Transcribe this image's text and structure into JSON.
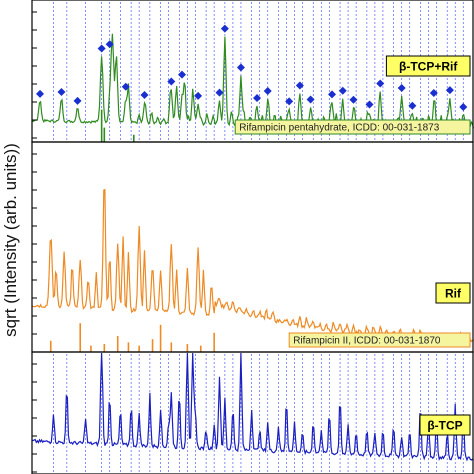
{
  "chart_data": [
    {
      "type": "line",
      "panel": "top",
      "series_label": "β-TCP+Rif",
      "reference_label": "Rifampicin pentahydrate, ICDD: 00-031-1873",
      "line_color": "#2e8b1f",
      "marker_color": "#1a2fd0",
      "label_box_fill": "#ffff66",
      "reference_box_fill": "#f5f5a0",
      "reference_box_edge": "#2e8b1f",
      "marker_positions": [
        3,
        11,
        17,
        26,
        29,
        35,
        42,
        52,
        56,
        62,
        70,
        72,
        78,
        84,
        88,
        96,
        100,
        104,
        112,
        116,
        120,
        126,
        130,
        138,
        142,
        150,
        156,
        161
      ],
      "reference_sticks": [
        {
          "x": 26,
          "h": 0.9
        },
        {
          "x": 27,
          "h": 0.4
        },
        {
          "x": 38,
          "h": 0.2
        }
      ]
    },
    {
      "type": "line",
      "panel": "middle",
      "series_label": "Rif",
      "reference_label": "Rifampicin II, ICDD: 00-031-1870",
      "line_color": "#ee8a24",
      "label_box_fill": "#ffff66",
      "reference_box_fill": "#f5f5a0",
      "reference_box_edge": "#ee8a24",
      "reference_sticks": [
        {
          "x": 7,
          "h": 0.35
        },
        {
          "x": 18,
          "h": 0.9
        },
        {
          "x": 22,
          "h": 0.2
        },
        {
          "x": 27,
          "h": 0.25
        },
        {
          "x": 32,
          "h": 0.5
        },
        {
          "x": 36,
          "h": 0.3
        },
        {
          "x": 40,
          "h": 0.2
        },
        {
          "x": 45,
          "h": 0.4
        },
        {
          "x": 48,
          "h": 0.85
        },
        {
          "x": 52,
          "h": 0.3
        },
        {
          "x": 58,
          "h": 0.25
        },
        {
          "x": 63,
          "h": 0.2
        },
        {
          "x": 68,
          "h": 0.6
        }
      ]
    },
    {
      "type": "line",
      "panel": "bottom",
      "series_label": "β-TCP",
      "line_color": "#1a1fc0",
      "label_box_fill": "#ffff66"
    }
  ],
  "y_axis_label": "sqrt (Intensity (arb. units))",
  "grid": "vertical dotted lines at β-TCP reflections",
  "dotted_line_color": "#5060ff",
  "reflection_positions": [
    8,
    13,
    20,
    26,
    29,
    33,
    37,
    40,
    44,
    48,
    51,
    55,
    58,
    61,
    65,
    68,
    72,
    75,
    78,
    82,
    85,
    88,
    92,
    95,
    98,
    101,
    105,
    108,
    111,
    115,
    118,
    121,
    125,
    128,
    131,
    135,
    138,
    141,
    145,
    148,
    151,
    155,
    158,
    161
  ]
}
